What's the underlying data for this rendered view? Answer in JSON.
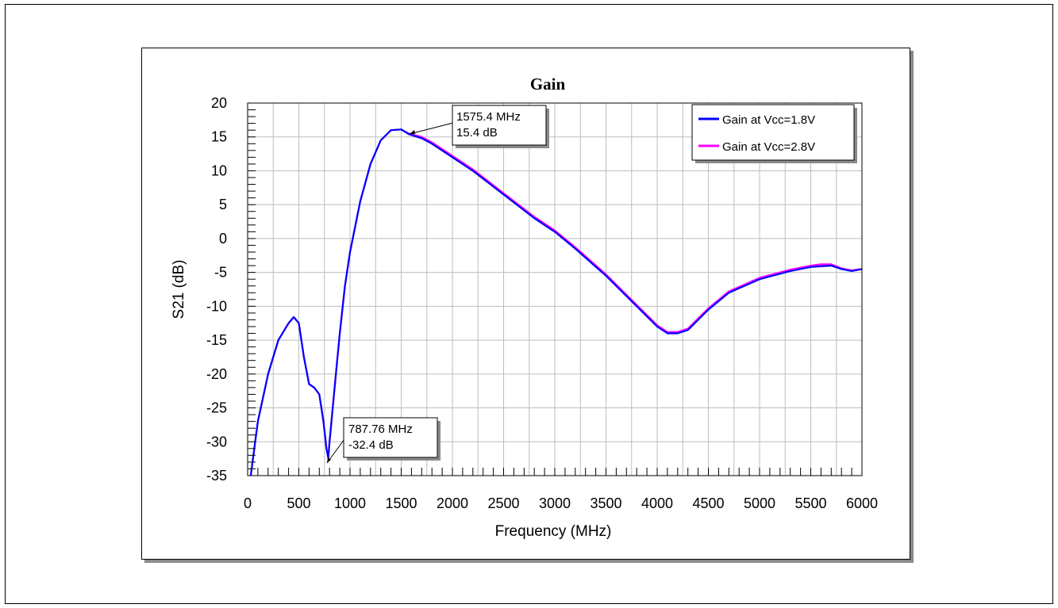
{
  "chart_data": {
    "type": "line",
    "title": "Gain",
    "xlabel": "Frequency (MHz)",
    "ylabel": "S21 (dB)",
    "xlim": [
      0,
      6000
    ],
    "ylim": [
      -35,
      20
    ],
    "x_ticks": [
      "0",
      "500",
      "1000",
      "1500",
      "2000",
      "2500",
      "3000",
      "3500",
      "4000",
      "4500",
      "5000",
      "5500",
      "6000"
    ],
    "y_ticks": [
      "20",
      "15",
      "10",
      "5",
      "0",
      "-5",
      "-10",
      "-15",
      "-20",
      "-25",
      "-30",
      "-35"
    ],
    "grid": true,
    "legend_position": "top-right",
    "series": [
      {
        "name": "Gain at Vcc=1.8V",
        "color": "#0000ff",
        "x": [
          30,
          100,
          200,
          300,
          400,
          450,
          500,
          550,
          600,
          650,
          700,
          740,
          770,
          787.76,
          800,
          850,
          900,
          950,
          1000,
          1100,
          1200,
          1300,
          1400,
          1500,
          1575.4,
          1700,
          1800,
          2000,
          2200,
          2500,
          2800,
          3000,
          3200,
          3500,
          3800,
          4000,
          4100,
          4200,
          4300,
          4400,
          4500,
          4700,
          5000,
          5300,
          5500,
          5600,
          5700,
          5800,
          5900,
          6000
        ],
        "y": [
          -35,
          -27,
          -20,
          -15,
          -12.5,
          -11.6,
          -12.5,
          -17.5,
          -21.5,
          -22,
          -23,
          -27,
          -31,
          -32.4,
          -30,
          -22,
          -14,
          -7,
          -2,
          5.5,
          11,
          14.5,
          16,
          16.1,
          15.4,
          14.8,
          14,
          12,
          10,
          6.5,
          3,
          1,
          -1.5,
          -5.5,
          -10,
          -13,
          -14,
          -14,
          -13.5,
          -12,
          -10.5,
          -8,
          -6,
          -4.8,
          -4.2,
          -4.1,
          -4.0,
          -4.5,
          -4.8,
          -4.5
        ]
      },
      {
        "name": "Gain at Vcc=2.8V",
        "color": "#ff00ff",
        "x": [
          30,
          100,
          200,
          300,
          400,
          450,
          500,
          550,
          600,
          650,
          700,
          740,
          770,
          787.76,
          800,
          850,
          900,
          950,
          1000,
          1100,
          1200,
          1300,
          1400,
          1500,
          1575.4,
          1700,
          1800,
          2000,
          2200,
          2500,
          2800,
          3000,
          3200,
          3500,
          3800,
          4000,
          4100,
          4200,
          4300,
          4400,
          4500,
          4700,
          5000,
          5300,
          5500,
          5600,
          5700,
          5800,
          5900,
          6000
        ],
        "y": [
          -35,
          -27,
          -20,
          -15,
          -12.5,
          -11.6,
          -12.5,
          -17.5,
          -21.5,
          -22,
          -23,
          -27,
          -31,
          -32.4,
          -30,
          -22,
          -14,
          -7,
          -2,
          5.5,
          11,
          14.5,
          16,
          16.1,
          15.5,
          15.0,
          14.2,
          12.2,
          10.2,
          6.7,
          3.2,
          1.2,
          -1.3,
          -5.3,
          -9.8,
          -12.8,
          -13.8,
          -13.8,
          -13.3,
          -11.8,
          -10.3,
          -7.8,
          -5.8,
          -4.6,
          -4.0,
          -3.8,
          -3.8,
          -4.4,
          -4.7,
          -4.5
        ]
      }
    ],
    "annotations": [
      {
        "label_line1": "1575.4 MHz",
        "label_line2": "15.4 dB",
        "x": 1575.4,
        "y": 15.4
      },
      {
        "label_line1": "787.76 MHz",
        "label_line2": "-32.4 dB",
        "x": 787.76,
        "y": -32.4
      }
    ]
  }
}
